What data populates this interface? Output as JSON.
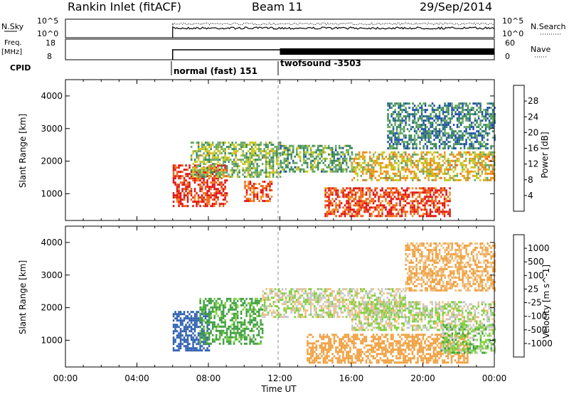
{
  "header": {
    "station": "Rankin Inlet (fitACF)",
    "beam": "Beam 11",
    "date": "29/Sep/2014"
  },
  "panels": {
    "nsky": {
      "label": "N.Sky",
      "ticks_left": [
        "10^5",
        "10^0"
      ],
      "right_label": "N.Search",
      "ticks_right": [
        "10^5",
        "10^0"
      ]
    },
    "freq": {
      "label_top": "Freq.",
      "label_unit": "[MHz]",
      "ticks_left": [
        "18",
        "8"
      ],
      "right_label": "Nave",
      "ticks_right": [
        "60",
        "0"
      ]
    },
    "cpid": {
      "label": "CPID",
      "modes": [
        "normal (fast) 151",
        "twofsound -3503"
      ]
    }
  },
  "colors": {
    "power_scale": [
      "#1010f0",
      "#1f4fa8",
      "#3a8a5c",
      "#6aa86a",
      "#c8c820",
      "#f09020",
      "#f06010",
      "#e01010"
    ],
    "velocity_scale": [
      "#1030c0",
      "#3060b0",
      "#40a040",
      "#80d040",
      "#c8c8c8",
      "#f0c080",
      "#f0a040",
      "#f07020",
      "#e03010",
      "#e01010"
    ]
  },
  "chart_data": [
    {
      "type": "heatmap",
      "title": "",
      "xlabel": "Time UT",
      "ylabel": "Slant Range [km]",
      "x_ticks": [
        "00:00",
        "04:00",
        "08:00",
        "12:00",
        "16:00",
        "20:00",
        "00:00"
      ],
      "y_ticks": [
        "1000",
        "2000",
        "3000",
        "4000"
      ],
      "xlim_hours": [
        0,
        24
      ],
      "ylim": [
        180,
        4500
      ],
      "colorbar_label": "Power [dB]",
      "colorbar_ticks": [
        "4",
        "8",
        "12",
        "16",
        "20",
        "24",
        "28"
      ],
      "clim": [
        0,
        30
      ],
      "data_start_hour": 6.0,
      "mode_change_hour": 12.0,
      "regions": [
        {
          "t0": 6.0,
          "t1": 9.0,
          "r0": 600,
          "r1": 1900,
          "value": 27
        },
        {
          "t0": 7.0,
          "t1": 12.0,
          "r0": 1500,
          "r1": 2600,
          "value": 14
        },
        {
          "t0": 10.0,
          "t1": 11.5,
          "r0": 800,
          "r1": 1400,
          "value": 25
        },
        {
          "t0": 12.0,
          "t1": 16.0,
          "r0": 1700,
          "r1": 2500,
          "value": 12
        },
        {
          "t0": 14.5,
          "t1": 21.5,
          "r0": 300,
          "r1": 1200,
          "value": 26
        },
        {
          "t0": 16.0,
          "t1": 24.0,
          "r0": 1400,
          "r1": 2300,
          "value": 18
        },
        {
          "t0": 18.0,
          "t1": 24.0,
          "r0": 2400,
          "r1": 3800,
          "value": 9
        }
      ]
    },
    {
      "type": "heatmap",
      "title": "",
      "xlabel": "Time UT",
      "ylabel": "Slant Range [km]",
      "x_ticks": [
        "00:00",
        "04:00",
        "08:00",
        "12:00",
        "16:00",
        "20:00",
        "00:00"
      ],
      "y_ticks": [
        "1000",
        "2000",
        "3000",
        "4000"
      ],
      "xlim_hours": [
        0,
        24
      ],
      "ylim": [
        180,
        4500
      ],
      "colorbar_label": "Velocity [m s^-1]",
      "colorbar_ticks": [
        "1000",
        "500",
        "100",
        "25",
        "-25",
        "-100",
        "-500",
        "-1000"
      ],
      "data_start_hour": 6.0,
      "mode_change_hour": 12.0,
      "regions": [
        {
          "t0": 6.0,
          "t1": 8.0,
          "r0": 700,
          "r1": 1900,
          "value": 700
        },
        {
          "t0": 7.5,
          "t1": 11.0,
          "r0": 900,
          "r1": 2300,
          "value": 150
        },
        {
          "t0": 11.0,
          "t1": 19.0,
          "r0": 1700,
          "r1": 2600,
          "value": 0
        },
        {
          "t0": 13.5,
          "t1": 22.5,
          "r0": 300,
          "r1": 1200,
          "value": -200
        },
        {
          "t0": 16.0,
          "t1": 24.0,
          "r0": 1300,
          "r1": 2200,
          "value": 10
        },
        {
          "t0": 21.0,
          "t1": 24.0,
          "r0": 600,
          "r1": 1500,
          "value": 60
        },
        {
          "t0": 19.0,
          "t1": 24.0,
          "r0": 2500,
          "r1": 4000,
          "value": -120
        }
      ]
    }
  ]
}
